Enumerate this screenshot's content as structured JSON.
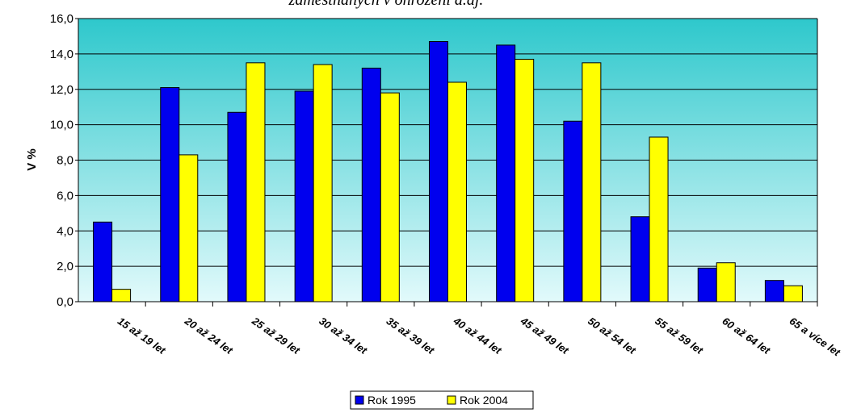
{
  "chart_data": {
    "type": "bar",
    "title": "zaměstnaných v ohrožení a.aj.",
    "ylabel": "V %",
    "xlabel": "",
    "ylim": [
      0,
      16
    ],
    "y_ticks": [
      "0,0",
      "2,0",
      "4,0",
      "6,0",
      "8,0",
      "10,0",
      "12,0",
      "14,0",
      "16,0"
    ],
    "y_tick_values": [
      0,
      2,
      4,
      6,
      8,
      10,
      12,
      14,
      16
    ],
    "categories": [
      "15 až 19 let",
      "20 až 24 let",
      "25 až 29 let",
      "30 až 34 let",
      "35 až 39 let",
      "40 až 44 let",
      "45 až 49 let",
      "50 až 54 let",
      "55 až 59 let",
      "60 až 64 let",
      "65 a více let"
    ],
    "series": [
      {
        "name": "Rok 1995",
        "color": "#0000ee",
        "values": [
          4.5,
          12.1,
          10.7,
          11.9,
          13.2,
          14.7,
          14.5,
          10.2,
          4.8,
          1.9,
          1.2
        ]
      },
      {
        "name": "Rok 2004",
        "color": "#ffff00",
        "values": [
          0.7,
          8.3,
          13.5,
          13.4,
          11.8,
          12.4,
          13.7,
          13.5,
          9.3,
          2.2,
          0.9
        ]
      }
    ],
    "grid": true,
    "legend_position": "bottom-center",
    "background_gradient": [
      "#2ec8cc",
      "#e2fafb"
    ]
  }
}
